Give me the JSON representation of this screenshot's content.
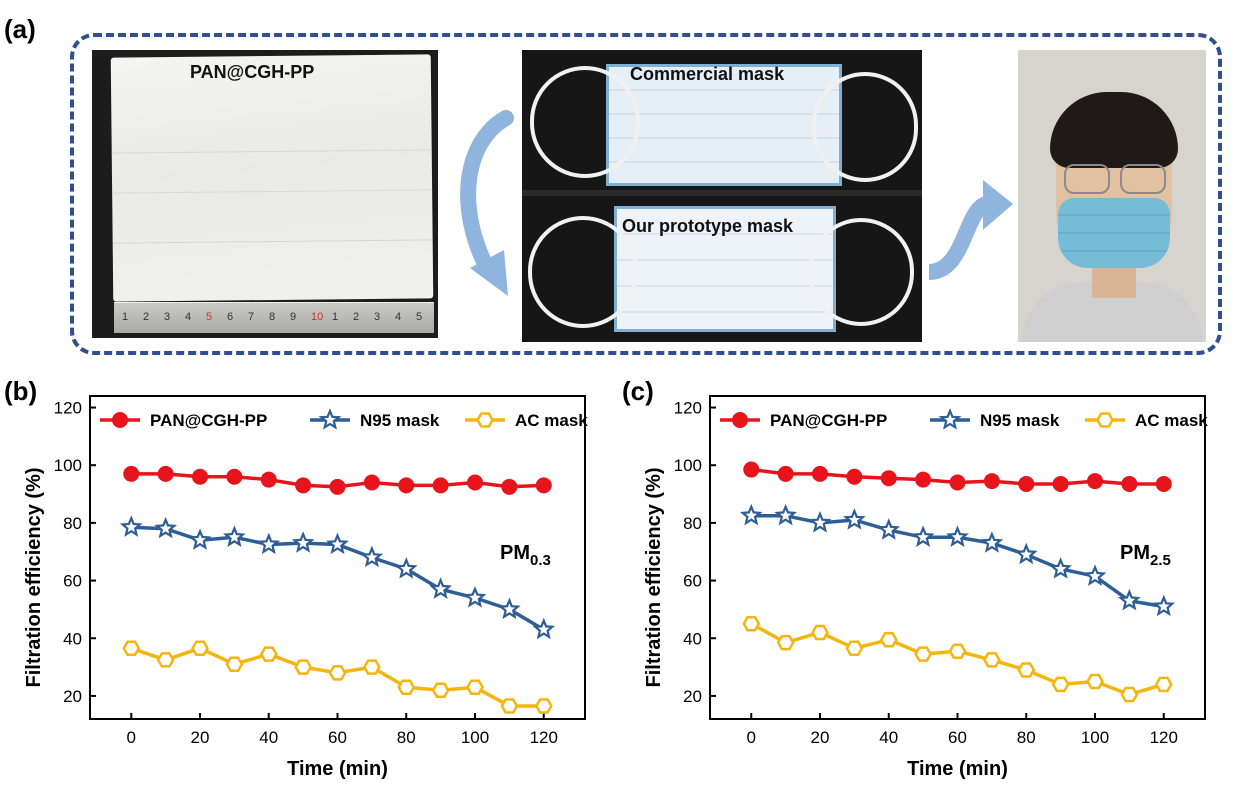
{
  "labels": {
    "a": "(a)",
    "b": "(b)",
    "c": "(c)"
  },
  "photos": {
    "sheet_caption": "PAN@CGH-PP",
    "ruler_ticks": [
      "1",
      "2",
      "3",
      "4",
      "5",
      "6",
      "7",
      "8",
      "9",
      "10",
      "1",
      "2",
      "3",
      "4",
      "5"
    ],
    "commercial_caption": "Commercial mask",
    "prototype_caption": "Our prototype mask"
  },
  "colors": {
    "frame": "#2f4f8f",
    "pan": "#e8141b",
    "n95": "#2e5e95",
    "ac": "#f5b50f",
    "arrow": "#8fb4dd"
  },
  "chart_data": [
    {
      "type": "line",
      "xlabel": "Time (min)",
      "ylabel": "Filtration efficiency (%)",
      "annotation": {
        "main": "PM",
        "sub": "0.3"
      },
      "x": [
        0,
        10,
        20,
        30,
        40,
        50,
        60,
        70,
        80,
        90,
        100,
        110,
        120
      ],
      "xticks": [
        0,
        20,
        40,
        60,
        80,
        100,
        120
      ],
      "yticks": [
        20,
        40,
        60,
        80,
        100,
        120
      ],
      "xlim": [
        -12,
        132
      ],
      "ylim": [
        12,
        124
      ],
      "legend_position": "top",
      "series": [
        {
          "name": "PAN@CGH-PP",
          "marker": "circle",
          "values": [
            97,
            97,
            96,
            96,
            95,
            93,
            92.5,
            94,
            93,
            93,
            94,
            92.5,
            93
          ]
        },
        {
          "name": "N95 mask",
          "marker": "star",
          "values": [
            78.5,
            78,
            74,
            75,
            72.5,
            73,
            72.5,
            68,
            64,
            57,
            54,
            50,
            43
          ]
        },
        {
          "name": "AC mask",
          "marker": "hexagon",
          "values": [
            36.5,
            32.5,
            36.5,
            31,
            34.5,
            30,
            28,
            30,
            23,
            22,
            23,
            16.5,
            16.5
          ]
        }
      ]
    },
    {
      "type": "line",
      "xlabel": "Time (min)",
      "ylabel": "Filtration efficiency (%)",
      "annotation": {
        "main": "PM",
        "sub": "2.5"
      },
      "x": [
        0,
        10,
        20,
        30,
        40,
        50,
        60,
        70,
        80,
        90,
        100,
        110,
        120
      ],
      "xticks": [
        0,
        20,
        40,
        60,
        80,
        100,
        120
      ],
      "yticks": [
        20,
        40,
        60,
        80,
        100,
        120
      ],
      "xlim": [
        -12,
        132
      ],
      "ylim": [
        12,
        124
      ],
      "legend_position": "top",
      "series": [
        {
          "name": "PAN@CGH-PP",
          "marker": "circle",
          "values": [
            98.5,
            97,
            97,
            96,
            95.5,
            95,
            94,
            94.5,
            93.5,
            93.5,
            94.5,
            93.5,
            93.5
          ]
        },
        {
          "name": "N95 mask",
          "marker": "star",
          "values": [
            82.5,
            82.5,
            80,
            81,
            77.5,
            75,
            75,
            73,
            69,
            64,
            61.5,
            53,
            51
          ]
        },
        {
          "name": "AC mask",
          "marker": "hexagon",
          "values": [
            45,
            38.5,
            42,
            36.5,
            39.5,
            34.5,
            35.5,
            32.5,
            29,
            24,
            25,
            20.5,
            24
          ]
        }
      ]
    }
  ]
}
